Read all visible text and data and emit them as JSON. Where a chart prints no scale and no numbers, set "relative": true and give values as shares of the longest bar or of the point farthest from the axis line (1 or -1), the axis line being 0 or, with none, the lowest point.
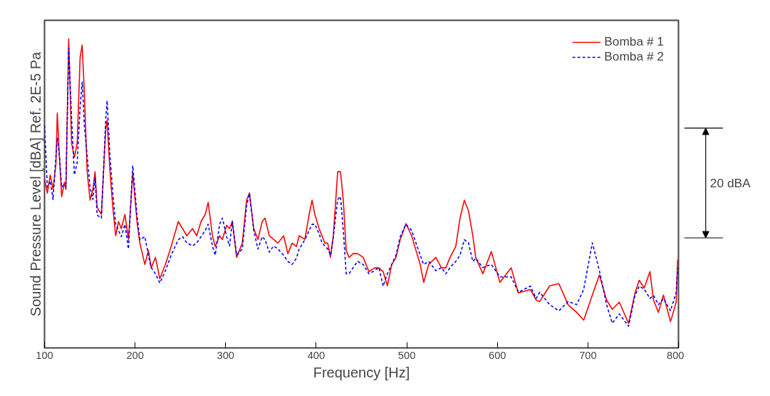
{
  "chart_data": {
    "type": "line",
    "relative": true,
    "xlabel": "Frequency [Hz]",
    "ylabel": "Sound Pressure Level [dBA] Ref. 2E-5 Pa",
    "annotations": [
      "20 dBA"
    ],
    "legend": "top right",
    "grid": false,
    "xlim": [
      100,
      800
    ],
    "xticks": [
      100,
      200,
      300,
      400,
      500,
      600,
      700,
      800
    ],
    "x": [
      100,
      103.1,
      106.3,
      109.4,
      112.6,
      114.1,
      116.5,
      118.9,
      122,
      123.6,
      126.7,
      129.9,
      133,
      136.1,
      139.3,
      141.6,
      144,
      147.1,
      150.3,
      153.4,
      155.8,
      158.1,
      162.8,
      167.6,
      169.1,
      172.3,
      175.4,
      178.6,
      181.7,
      184.8,
      188.8,
      192.7,
      197.4,
      202.1,
      205.3,
      210.8,
      214.7,
      217.8,
      222.5,
      227.3,
      233.5,
      239.8,
      247.7,
      252.4,
      257.1,
      263.4,
      268.1,
      272.8,
      277.5,
      280.7,
      285.4,
      288.5,
      293.3,
      296.4,
      301.1,
      304.3,
      307.4,
      312.1,
      318.4,
      323.1,
      326.3,
      331,
      335.7,
      340.4,
      343.5,
      348.2,
      353,
      357.7,
      364,
      368.7,
      373.4,
      378.1,
      381.2,
      387.5,
      392.2,
      395.4,
      398.5,
      403.2,
      406.4,
      409.5,
      412.7,
      415.8,
      418.9,
      423.7,
      426.8,
      429.9,
      433.1,
      436.2,
      440.9,
      445.7,
      451.9,
      458.2,
      464.5,
      469.2,
      473.9,
      478.6,
      483.4,
      488.1,
      492.8,
      499.1,
      505.4,
      510.1,
      514.8,
      518.7,
      524.2,
      532.1,
      538.3,
      543.1,
      547.8,
      554.1,
      558.8,
      563.5,
      568.2,
      572.9,
      576.1,
      584,
      593.4,
      602.8,
      615.3,
      623.2,
      636.5,
      642.8,
      646.8,
      657.8,
      668,
      678.2,
      687.6,
      695.4,
      704.9,
      712.7,
      720.6,
      726.9,
      734.7,
      744.9,
      752,
      756.7,
      762.2,
      768.5,
      772.4,
      777.9,
      783.4,
      791.2,
      797.5,
      799.1
    ],
    "series": [
      {
        "name": "Bomba # 1",
        "color": "#ff0000",
        "line_style": "solid",
        "values": [
          0.547,
          0.501,
          0.559,
          0.513,
          0.594,
          0.76,
          0.617,
          0.49,
          0.536,
          0.513,
          1.0,
          0.663,
          0.617,
          0.663,
          0.94,
          0.98,
          0.824,
          0.57,
          0.478,
          0.513,
          0.57,
          0.455,
          0.432,
          0.709,
          0.737,
          0.57,
          0.455,
          0.363,
          0.409,
          0.386,
          0.432,
          0.351,
          0.566,
          0.409,
          0.339,
          0.27,
          0.316,
          0.259,
          0.293,
          0.224,
          0.27,
          0.328,
          0.409,
          0.386,
          0.363,
          0.386,
          0.363,
          0.409,
          0.432,
          0.471,
          0.363,
          0.328,
          0.363,
          0.351,
          0.397,
          0.386,
          0.409,
          0.293,
          0.339,
          0.478,
          0.501,
          0.386,
          0.351,
          0.409,
          0.42,
          0.363,
          0.351,
          0.339,
          0.363,
          0.305,
          0.339,
          0.328,
          0.363,
          0.351,
          0.432,
          0.478,
          0.432,
          0.386,
          0.363,
          0.339,
          0.339,
          0.293,
          0.363,
          0.57,
          0.57,
          0.478,
          0.316,
          0.293,
          0.305,
          0.305,
          0.293,
          0.247,
          0.259,
          0.259,
          0.247,
          0.201,
          0.27,
          0.293,
          0.351,
          0.402,
          0.363,
          0.316,
          0.27,
          0.212,
          0.27,
          0.293,
          0.259,
          0.259,
          0.293,
          0.328,
          0.42,
          0.478,
          0.443,
          0.363,
          0.293,
          0.24,
          0.312,
          0.212,
          0.259,
          0.178,
          0.189,
          0.155,
          0.15,
          0.201,
          0.208,
          0.139,
          0.115,
          0.09,
          0.171,
          0.236,
          0.155,
          0.125,
          0.148,
          0.079,
          0.178,
          0.219,
          0.194,
          0.247,
          0.155,
          0.115,
          0.171,
          0.085,
          0.148,
          0.286
        ]
      },
      {
        "name": "Bomba # 2",
        "color": "#0000ff",
        "line_style": "dashed",
        "values": [
          0.72,
          0.52,
          0.54,
          0.48,
          0.62,
          0.68,
          0.62,
          0.52,
          0.53,
          0.52,
          0.97,
          0.74,
          0.56,
          0.6,
          0.78,
          0.86,
          0.72,
          0.62,
          0.52,
          0.48,
          0.55,
          0.43,
          0.42,
          0.74,
          0.8,
          0.62,
          0.5,
          0.4,
          0.38,
          0.36,
          0.4,
          0.32,
          0.59,
          0.43,
          0.35,
          0.36,
          0.3,
          0.26,
          0.24,
          0.21,
          0.25,
          0.3,
          0.35,
          0.36,
          0.34,
          0.33,
          0.34,
          0.36,
          0.38,
          0.4,
          0.33,
          0.3,
          0.4,
          0.42,
          0.36,
          0.33,
          0.41,
          0.3,
          0.32,
          0.46,
          0.5,
          0.38,
          0.32,
          0.36,
          0.35,
          0.31,
          0.33,
          0.32,
          0.3,
          0.28,
          0.27,
          0.29,
          0.32,
          0.35,
          0.38,
          0.4,
          0.4,
          0.37,
          0.34,
          0.33,
          0.32,
          0.3,
          0.36,
          0.48,
          0.49,
          0.38,
          0.24,
          0.24,
          0.26,
          0.28,
          0.27,
          0.24,
          0.25,
          0.26,
          0.2,
          0.24,
          0.27,
          0.3,
          0.36,
          0.4,
          0.38,
          0.34,
          0.3,
          0.27,
          0.28,
          0.25,
          0.26,
          0.24,
          0.26,
          0.28,
          0.3,
          0.35,
          0.34,
          0.28,
          0.29,
          0.26,
          0.27,
          0.23,
          0.23,
          0.18,
          0.2,
          0.16,
          0.18,
          0.14,
          0.12,
          0.15,
          0.14,
          0.19,
          0.34,
          0.25,
          0.14,
          0.08,
          0.11,
          0.07,
          0.17,
          0.2,
          0.19,
          0.16,
          0.17,
          0.14,
          0.16,
          0.12,
          0.18,
          0.26
        ]
      }
    ]
  }
}
